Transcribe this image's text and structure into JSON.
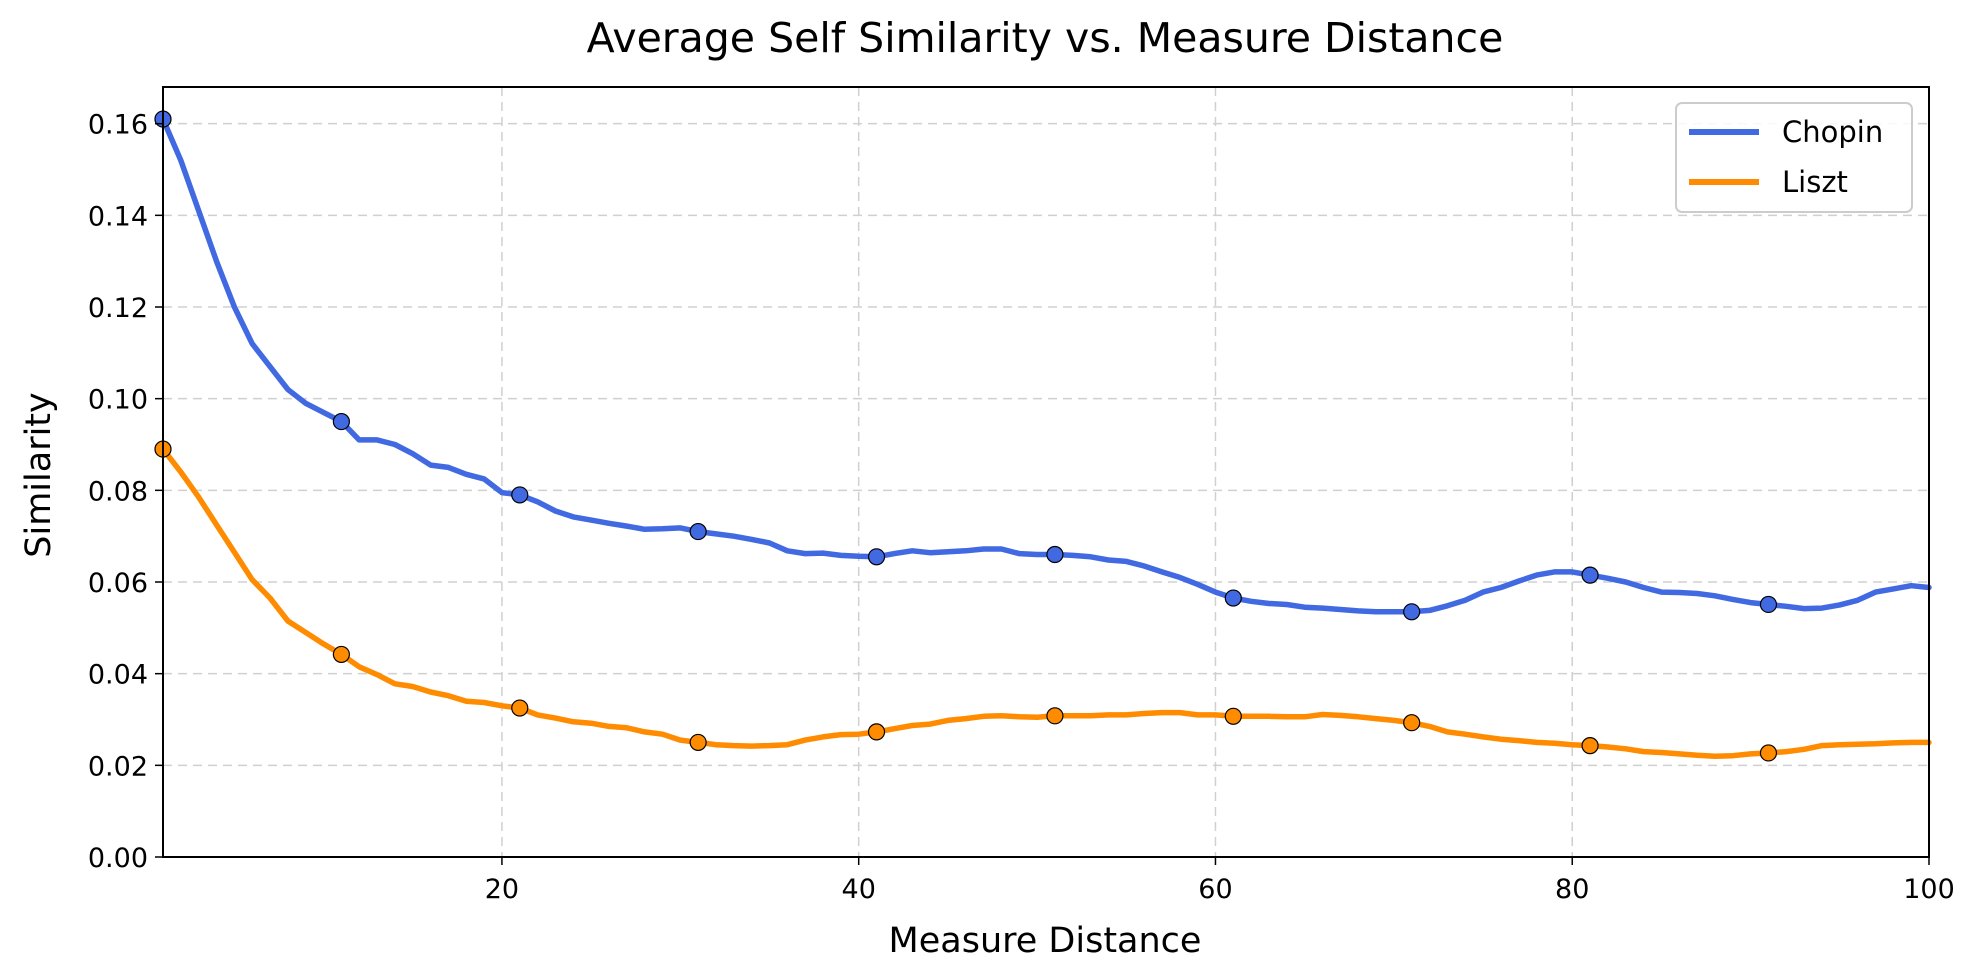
{
  "chart_data": {
    "type": "line",
    "title": "Average Self Similarity vs. Measure Distance",
    "xlabel": "Measure Distance",
    "ylabel": "Similarity",
    "xlim": [
      1,
      100
    ],
    "ylim": [
      0,
      0.168
    ],
    "xticks": [
      20,
      40,
      60,
      80,
      100
    ],
    "yticks": [
      0.0,
      0.02,
      0.04,
      0.06,
      0.08,
      0.1,
      0.12,
      0.14,
      0.16
    ],
    "xtick_labels": [
      "20",
      "40",
      "60",
      "80",
      "100"
    ],
    "ytick_labels": [
      "0.00",
      "0.02",
      "0.04",
      "0.06",
      "0.08",
      "0.10",
      "0.12",
      "0.14",
      "0.16"
    ],
    "grid": true,
    "legend_position": "top-right",
    "marker_every": 10,
    "series": [
      {
        "name": "Chopin",
        "color": "#4169e1",
        "x": [
          1,
          2,
          3,
          4,
          5,
          6,
          7,
          8,
          9,
          10,
          11,
          12,
          13,
          14,
          15,
          16,
          17,
          18,
          19,
          20,
          21,
          22,
          23,
          24,
          25,
          26,
          27,
          28,
          29,
          30,
          31,
          32,
          33,
          34,
          35,
          36,
          37,
          38,
          39,
          40,
          41,
          42,
          43,
          44,
          45,
          46,
          47,
          48,
          49,
          50,
          51,
          52,
          53,
          54,
          55,
          56,
          57,
          58,
          59,
          60,
          61,
          62,
          63,
          64,
          65,
          66,
          67,
          68,
          69,
          70,
          71,
          72,
          73,
          74,
          75,
          76,
          77,
          78,
          79,
          80,
          81,
          82,
          83,
          84,
          85,
          86,
          87,
          88,
          89,
          90,
          91,
          92,
          93,
          94,
          95,
          96,
          97,
          98,
          99,
          100
        ],
        "y": [
          0.161,
          0.152,
          0.141,
          0.13,
          0.12,
          0.112,
          0.107,
          0.102,
          0.099,
          0.097,
          0.095,
          0.091,
          0.091,
          0.09,
          0.088,
          0.0855,
          0.085,
          0.0835,
          0.0825,
          0.0795,
          0.079,
          0.0775,
          0.0755,
          0.0742,
          0.0735,
          0.0728,
          0.0722,
          0.0715,
          0.0716,
          0.0718,
          0.071,
          0.0705,
          0.07,
          0.0693,
          0.0685,
          0.0668,
          0.0662,
          0.0663,
          0.0658,
          0.0656,
          0.0655,
          0.0662,
          0.0668,
          0.0664,
          0.0666,
          0.0668,
          0.0672,
          0.0672,
          0.0662,
          0.066,
          0.066,
          0.0658,
          0.0655,
          0.0648,
          0.0645,
          0.0635,
          0.0622,
          0.061,
          0.0595,
          0.0578,
          0.0565,
          0.0558,
          0.0553,
          0.0551,
          0.0545,
          0.0543,
          0.054,
          0.0537,
          0.0535,
          0.0535,
          0.0535,
          0.0538,
          0.0548,
          0.056,
          0.0578,
          0.0588,
          0.0602,
          0.0615,
          0.0622,
          0.0622,
          0.0615,
          0.0608,
          0.06,
          0.0588,
          0.0578,
          0.0577,
          0.0575,
          0.057,
          0.0562,
          0.0555,
          0.0551,
          0.0547,
          0.0542,
          0.0543,
          0.055,
          0.056,
          0.0578,
          0.0585,
          0.0592,
          0.0588
        ]
      },
      {
        "name": "Liszt",
        "color": "#ff8c00",
        "x": [
          1,
          2,
          3,
          4,
          5,
          6,
          7,
          8,
          9,
          10,
          11,
          12,
          13,
          14,
          15,
          16,
          17,
          18,
          19,
          20,
          21,
          22,
          23,
          24,
          25,
          26,
          27,
          28,
          29,
          30,
          31,
          32,
          33,
          34,
          35,
          36,
          37,
          38,
          39,
          40,
          41,
          42,
          43,
          44,
          45,
          46,
          47,
          48,
          49,
          50,
          51,
          52,
          53,
          54,
          55,
          56,
          57,
          58,
          59,
          60,
          61,
          62,
          63,
          64,
          65,
          66,
          67,
          68,
          69,
          70,
          71,
          72,
          73,
          74,
          75,
          76,
          77,
          78,
          79,
          80,
          81,
          82,
          83,
          84,
          85,
          86,
          87,
          88,
          89,
          90,
          91,
          92,
          93,
          94,
          95,
          96,
          97,
          98,
          99,
          100
        ],
        "y": [
          0.089,
          0.084,
          0.0785,
          0.0725,
          0.0665,
          0.0605,
          0.0565,
          0.0515,
          0.049,
          0.0465,
          0.0442,
          0.0415,
          0.0398,
          0.0378,
          0.0372,
          0.036,
          0.0352,
          0.034,
          0.0337,
          0.033,
          0.0325,
          0.031,
          0.0303,
          0.0295,
          0.0292,
          0.0285,
          0.0282,
          0.0273,
          0.0268,
          0.0255,
          0.025,
          0.0245,
          0.0243,
          0.0242,
          0.0243,
          0.0245,
          0.0255,
          0.0262,
          0.0267,
          0.0268,
          0.0273,
          0.028,
          0.0287,
          0.029,
          0.0298,
          0.0302,
          0.0307,
          0.0308,
          0.0306,
          0.0305,
          0.0308,
          0.0308,
          0.0308,
          0.031,
          0.031,
          0.0313,
          0.0315,
          0.0315,
          0.031,
          0.031,
          0.0307,
          0.0307,
          0.0307,
          0.0306,
          0.0306,
          0.0311,
          0.0309,
          0.0306,
          0.0302,
          0.0298,
          0.0293,
          0.0285,
          0.0273,
          0.0268,
          0.0262,
          0.0257,
          0.0254,
          0.025,
          0.0248,
          0.0245,
          0.0243,
          0.024,
          0.0236,
          0.023,
          0.0228,
          0.0225,
          0.0222,
          0.022,
          0.0221,
          0.0225,
          0.0227,
          0.023,
          0.0235,
          0.0243,
          0.0245,
          0.0246,
          0.0247,
          0.0249,
          0.025,
          0.025
        ]
      }
    ]
  }
}
